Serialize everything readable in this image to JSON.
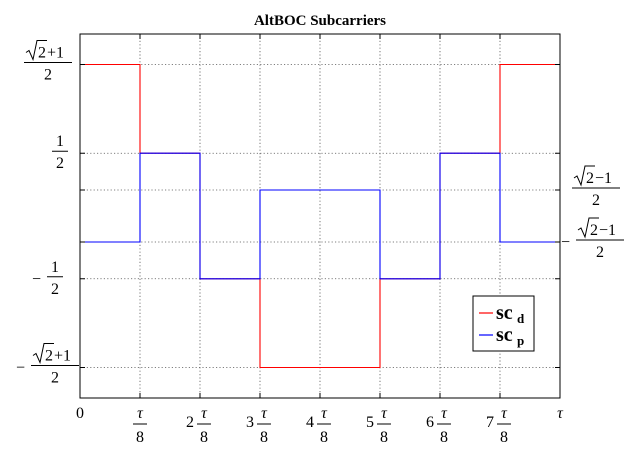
{
  "chart_data": {
    "type": "line",
    "title": "AltBOC Subcarriers",
    "xlabel": "",
    "ylabel": "",
    "xlim": [
      0,
      1
    ],
    "ylim": [
      -1.45,
      1.45
    ],
    "grid": true,
    "legend_position": "bottom-right",
    "x_ticks": [
      {
        "value": 0,
        "label": "0"
      },
      {
        "value": 0.125,
        "label": "τ/8"
      },
      {
        "value": 0.25,
        "label": "2 τ/8"
      },
      {
        "value": 0.375,
        "label": "3 τ/8"
      },
      {
        "value": 0.5,
        "label": "4 τ/8"
      },
      {
        "value": 0.625,
        "label": "5 τ/8"
      },
      {
        "value": 0.75,
        "label": "6 τ/8"
      },
      {
        "value": 0.875,
        "label": "7 τ/8"
      },
      {
        "value": 1,
        "label": "τ"
      }
    ],
    "y_ticks_left": [
      {
        "value": 1.2071,
        "label": "(√2+1)/2"
      },
      {
        "value": 0.5,
        "label": "1/2"
      },
      {
        "value": -0.5,
        "label": "−1/2"
      },
      {
        "value": -1.2071,
        "label": "−(√2+1)/2"
      }
    ],
    "y_ticks_right": [
      {
        "value": 0.2071,
        "label": "(√2−1)/2"
      },
      {
        "value": -0.2071,
        "label": "−(√2−1)/2"
      }
    ],
    "series": [
      {
        "name": "sc_d",
        "color": "#ff0000",
        "x": [
          0,
          0.125,
          0.125,
          0.25,
          0.25,
          0.375,
          0.375,
          0.625,
          0.625,
          0.75,
          0.75,
          0.875,
          0.875,
          1
        ],
        "y": [
          1.2071,
          1.2071,
          0.5,
          0.5,
          -0.5,
          -0.5,
          -1.2071,
          -1.2071,
          -0.5,
          -0.5,
          0.5,
          0.5,
          1.2071,
          1.2071
        ]
      },
      {
        "name": "sc_p",
        "color": "#0000ff",
        "x": [
          0,
          0.125,
          0.125,
          0.25,
          0.25,
          0.375,
          0.375,
          0.625,
          0.625,
          0.75,
          0.75,
          0.875,
          0.875,
          1
        ],
        "y": [
          -0.2071,
          -0.2071,
          0.5,
          0.5,
          -0.5,
          -0.5,
          0.2071,
          0.2071,
          -0.5,
          -0.5,
          0.5,
          0.5,
          -0.2071,
          -0.2071
        ]
      }
    ],
    "legend": [
      {
        "main": "sc",
        "sub": "d",
        "color": "#ff0000"
      },
      {
        "main": "sc",
        "sub": "p",
        "color": "#0000ff"
      }
    ]
  }
}
